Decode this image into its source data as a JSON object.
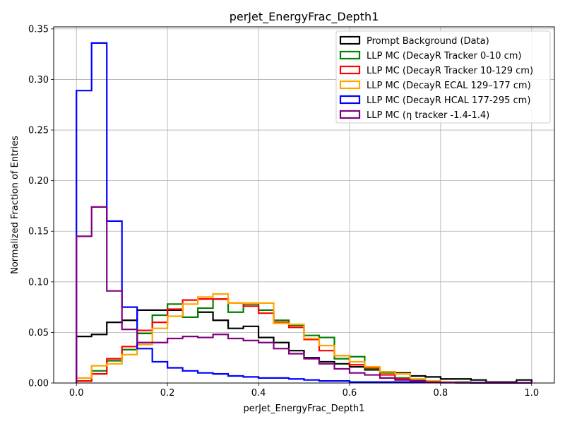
{
  "chart_data": {
    "type": "histogram-step",
    "title": "perJet_EnergyFrac_Depth1",
    "xlabel": "perJet_EnergyFrac_Depth1",
    "ylabel": "Normalized Fraction of Entries",
    "xlim": [
      -0.05,
      1.05
    ],
    "ylim": [
      0,
      0.352
    ],
    "xticks": [
      0.0,
      0.2,
      0.4,
      0.6,
      0.8,
      1.0
    ],
    "xtick_labels": [
      "0.0",
      "0.2",
      "0.4",
      "0.6",
      "0.8",
      "1.0"
    ],
    "yticks": [
      0.0,
      0.05,
      0.1,
      0.15,
      0.2,
      0.25,
      0.3,
      0.35
    ],
    "ytick_labels": [
      "0.00",
      "0.05",
      "0.10",
      "0.15",
      "0.20",
      "0.25",
      "0.30",
      "0.35"
    ],
    "grid": true,
    "legend_position": "top-right",
    "bin_edges": [
      0.0,
      0.0333,
      0.0667,
      0.1,
      0.1333,
      0.1667,
      0.2,
      0.2333,
      0.2667,
      0.3,
      0.3333,
      0.3667,
      0.4,
      0.4333,
      0.4667,
      0.5,
      0.5333,
      0.5667,
      0.6,
      0.6333,
      0.6667,
      0.7,
      0.7333,
      0.7667,
      0.8,
      0.8333,
      0.8667,
      0.9,
      0.9333,
      0.9667,
      1.0
    ],
    "series": [
      {
        "name": "Prompt Background (Data)",
        "color": "#000000",
        "values": [
          0.046,
          0.048,
          0.06,
          0.062,
          0.072,
          0.072,
          0.072,
          0.065,
          0.07,
          0.062,
          0.054,
          0.056,
          0.045,
          0.04,
          0.032,
          0.025,
          0.021,
          0.019,
          0.016,
          0.013,
          0.011,
          0.01,
          0.007,
          0.006,
          0.004,
          0.004,
          0.003,
          0.001,
          0.001,
          0.003
        ]
      },
      {
        "name": "LLP MC (DecayR Tracker 0-10 cm)",
        "color": "#008000",
        "values": [
          0.002,
          0.012,
          0.022,
          0.033,
          0.049,
          0.067,
          0.078,
          0.065,
          0.074,
          0.083,
          0.07,
          0.078,
          0.072,
          0.062,
          0.057,
          0.047,
          0.045,
          0.024,
          0.026,
          0.014,
          0.01,
          0.005,
          0.003,
          0.002,
          0.001,
          0.001,
          0.0005,
          0.0003,
          0.0002,
          0.0002
        ]
      },
      {
        "name": "LLP MC (DecayR Tracker 10-129 cm)",
        "color": "#ff0000",
        "values": [
          0.002,
          0.009,
          0.024,
          0.036,
          0.052,
          0.06,
          0.073,
          0.082,
          0.083,
          0.083,
          0.079,
          0.076,
          0.069,
          0.06,
          0.055,
          0.043,
          0.032,
          0.027,
          0.018,
          0.015,
          0.008,
          0.004,
          0.002,
          0.001,
          0.0005,
          0.0003,
          0.0002,
          0.0001,
          0.0001,
          0.0001
        ]
      },
      {
        "name": "LLP MC (DecayR ECAL 129–177 cm)",
        "color": "#ffa500",
        "values": [
          0.005,
          0.017,
          0.019,
          0.028,
          0.038,
          0.054,
          0.066,
          0.078,
          0.085,
          0.088,
          0.079,
          0.079,
          0.079,
          0.059,
          0.058,
          0.044,
          0.037,
          0.027,
          0.021,
          0.016,
          0.011,
          0.009,
          0.004,
          0.002,
          0.001,
          0.0005,
          0.0003,
          0.0002,
          0.0001,
          0.0001
        ]
      },
      {
        "name": "LLP MC (DecayR HCAL 177-295 cm)",
        "color": "#0000ff",
        "values": [
          0.289,
          0.336,
          0.16,
          0.075,
          0.034,
          0.021,
          0.015,
          0.012,
          0.01,
          0.009,
          0.007,
          0.006,
          0.005,
          0.005,
          0.004,
          0.003,
          0.002,
          0.002,
          0.001,
          0.001,
          0.001,
          0.001,
          0.001,
          0.0005,
          0.0003,
          0.0002,
          0.0001,
          0.0001,
          0.0001,
          0.0001
        ]
      },
      {
        "name": "LLP MC (η tracker -1.4-1.4)",
        "color": "#800080",
        "values": [
          0.145,
          0.174,
          0.091,
          0.053,
          0.04,
          0.04,
          0.044,
          0.046,
          0.045,
          0.048,
          0.044,
          0.042,
          0.04,
          0.034,
          0.029,
          0.024,
          0.019,
          0.014,
          0.01,
          0.008,
          0.005,
          0.003,
          0.002,
          0.001,
          0.0005,
          0.0003,
          0.0002,
          0.0001,
          0.0001,
          0.0001
        ]
      }
    ]
  }
}
